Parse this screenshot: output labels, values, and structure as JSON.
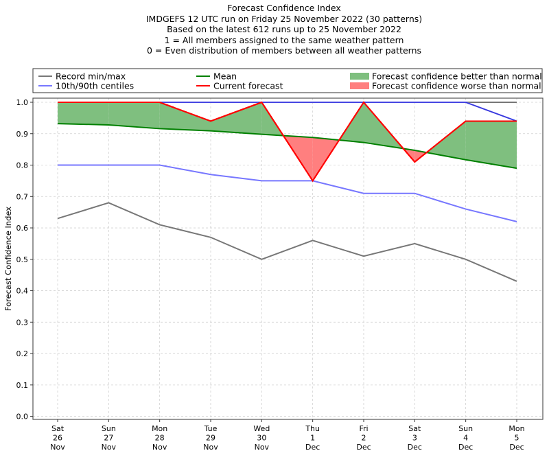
{
  "chart_data": {
    "type": "line",
    "title": "Forecast Confidence Index",
    "subtitle_lines": [
      "IMDGEFS 12 UTC run on Friday 25 November 2022 (30 patterns)",
      "Based on the latest 612 runs up to 25 November 2022",
      "1 = All members assigned to the same weather pattern",
      "0 = Even distribution of members between all weather patterns"
    ],
    "xlabel": "",
    "ylabel": "Forecast Confidence Index",
    "ylim": [
      0.0,
      1.0
    ],
    "yticks": [
      "0.0",
      "0.1",
      "0.2",
      "0.3",
      "0.4",
      "0.5",
      "0.6",
      "0.7",
      "0.8",
      "0.9",
      "1.0"
    ],
    "grid": true,
    "legend_placement": "top (above plot, three columns)",
    "categories": [
      [
        "Sat",
        "26",
        "Nov"
      ],
      [
        "Sun",
        "27",
        "Nov"
      ],
      [
        "Mon",
        "28",
        "Nov"
      ],
      [
        "Tue",
        "29",
        "Nov"
      ],
      [
        "Wed",
        "30",
        "Nov"
      ],
      [
        "Thu",
        "1",
        "Dec"
      ],
      [
        "Fri",
        "2",
        "Dec"
      ],
      [
        "Sat",
        "3",
        "Dec"
      ],
      [
        "Sun",
        "4",
        "Dec"
      ],
      [
        "Mon",
        "5",
        "Dec"
      ]
    ],
    "series": [
      {
        "name": "Record min",
        "legend": "Record min/max",
        "color": "#777777",
        "values": [
          0.63,
          0.68,
          0.61,
          0.57,
          0.5,
          0.56,
          0.51,
          0.55,
          0.5,
          0.43
        ]
      },
      {
        "name": "Record max",
        "legend": "Record min/max",
        "color": "#777777",
        "values": [
          1.0,
          1.0,
          1.0,
          1.0,
          1.0,
          1.0,
          1.0,
          1.0,
          1.0,
          1.0
        ]
      },
      {
        "name": "10th centile",
        "legend": "10th/90th centiles",
        "color": "#7777ff",
        "values": [
          0.8,
          0.8,
          0.8,
          0.77,
          0.75,
          0.75,
          0.71,
          0.71,
          0.66,
          0.62
        ]
      },
      {
        "name": "90th centile",
        "legend": "10th/90th centiles",
        "color": "#7777ff",
        "values": [
          1.0,
          1.0,
          1.0,
          1.0,
          1.0,
          1.0,
          1.0,
          1.0,
          1.0,
          0.94
        ]
      },
      {
        "name": "Mean",
        "legend": "Mean",
        "color": "#008000",
        "values": [
          0.932,
          0.928,
          0.916,
          0.909,
          0.898,
          0.888,
          0.872,
          0.847,
          0.817,
          0.79
        ]
      },
      {
        "name": "Current forecast",
        "legend": "Current forecast",
        "color": "#ff0000",
        "values": [
          1.0,
          1.0,
          1.0,
          0.94,
          1.0,
          0.75,
          1.0,
          0.81,
          0.94,
          0.94
        ]
      }
    ],
    "fills": [
      {
        "name": "Forecast confidence better than normal",
        "color": "#7fbf7f",
        "condition": "current forecast above mean"
      },
      {
        "name": "Forecast confidence worse than normal",
        "color": "#ff7f7f",
        "condition": "current forecast below mean"
      }
    ]
  },
  "legend": {
    "items": [
      {
        "label": "Record min/max",
        "kind": "line",
        "color": "#777777"
      },
      {
        "label": "10th/90th centiles",
        "kind": "line",
        "color": "#7777ff"
      },
      {
        "label": "Mean",
        "kind": "line",
        "color": "#008000"
      },
      {
        "label": "Current forecast",
        "kind": "line",
        "color": "#ff0000"
      },
      {
        "label": "Forecast confidence better than normal",
        "kind": "patch",
        "color": "#7fbf7f"
      },
      {
        "label": "Forecast confidence worse than normal",
        "kind": "patch",
        "color": "#ff7f7f"
      }
    ]
  }
}
